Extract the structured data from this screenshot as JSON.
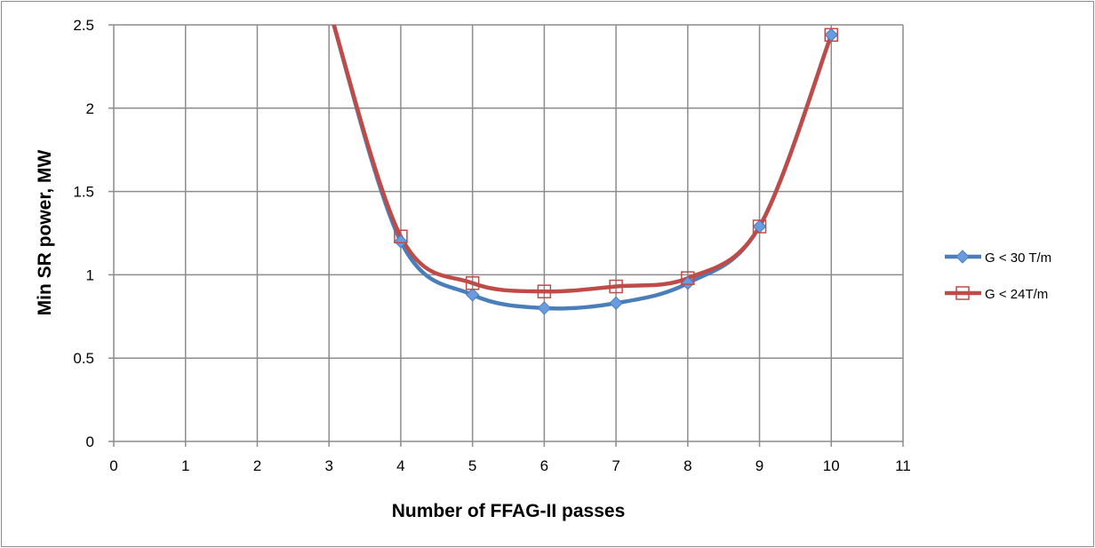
{
  "chart_data": {
    "type": "line",
    "title": "",
    "xlabel": "Number of FFAG-II passes",
    "ylabel": "Min SR power, MW",
    "xlim": [
      0,
      11
    ],
    "ylim": [
      0,
      2.5
    ],
    "xticks": [
      "0",
      "1",
      "2",
      "3",
      "4",
      "5",
      "6",
      "7",
      "8",
      "9",
      "10",
      "11"
    ],
    "yticks": [
      "0",
      "0.5",
      "1",
      "1.5",
      "2",
      "2.5"
    ],
    "grid": true,
    "legend_position": "right",
    "x": [
      3,
      4,
      5,
      6,
      7,
      8,
      9,
      10
    ],
    "series": [
      {
        "name": "G < 30 T/m",
        "color": "#4a7ebb",
        "marker": "diamond",
        "values": [
          2.6,
          1.2,
          0.88,
          0.8,
          0.83,
          0.95,
          1.29,
          2.44
        ]
      },
      {
        "name": "G < 24T/m",
        "color": "#be4b48",
        "marker": "square-open",
        "values": [
          2.6,
          1.23,
          0.95,
          0.9,
          0.93,
          0.98,
          1.29,
          2.44
        ]
      }
    ]
  }
}
